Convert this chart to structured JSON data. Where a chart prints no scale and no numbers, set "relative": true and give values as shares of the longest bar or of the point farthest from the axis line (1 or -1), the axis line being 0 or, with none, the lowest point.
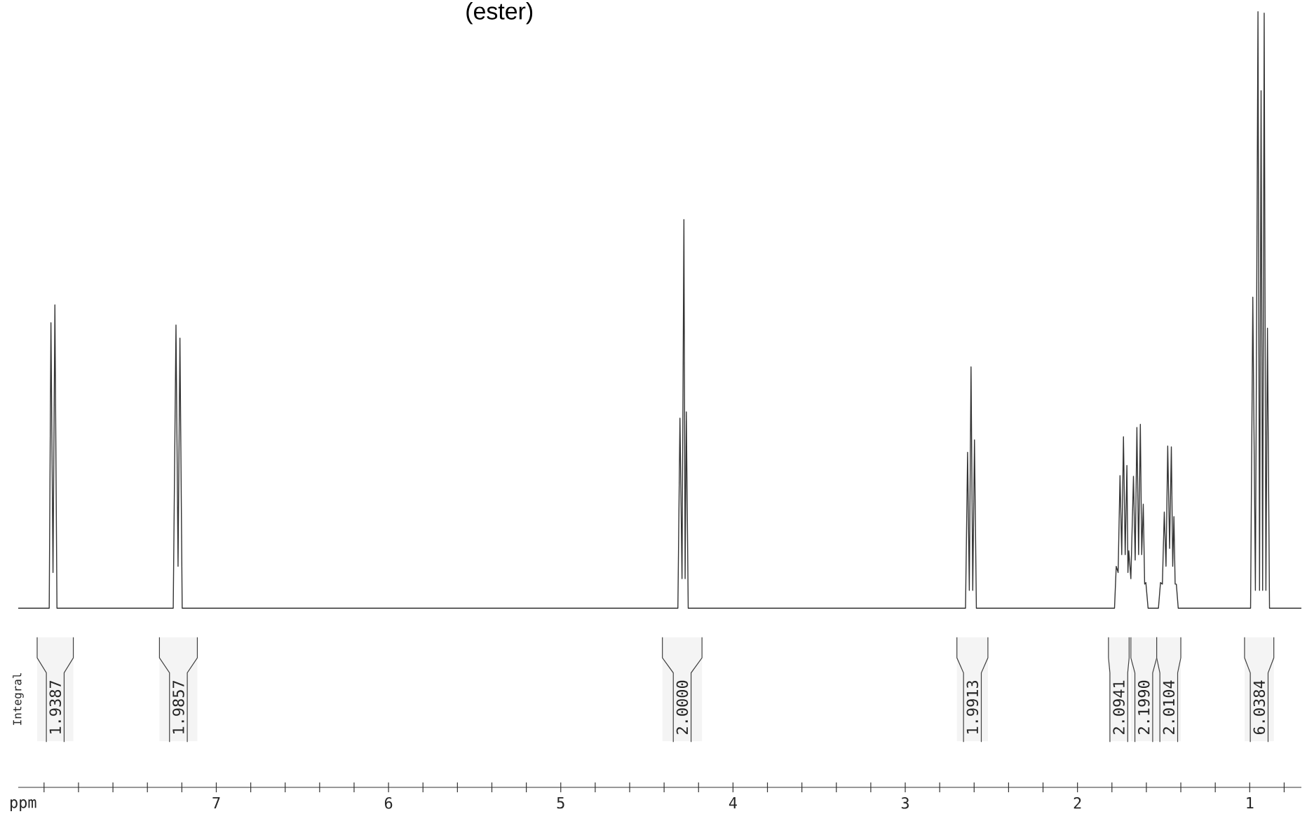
{
  "chart_data": {
    "type": "line",
    "relative": true,
    "title": "(ester)",
    "xlabel": "ppm",
    "color": "#333333",
    "xlim": [
      8.15,
      0.7
    ],
    "xticks": [
      {
        "value": 8,
        "label": null
      },
      7,
      6,
      5,
      4,
      3,
      2,
      1,
      {
        "value": 7.8,
        "label": null
      },
      {
        "value": 7.6,
        "label": null
      },
      {
        "value": 7.4,
        "label": null
      },
      {
        "value": 7.2,
        "label": null
      },
      {
        "value": 6.8,
        "label": null
      },
      {
        "value": 6.6,
        "label": null
      },
      {
        "value": 6.4,
        "label": null
      },
      {
        "value": 6.2,
        "label": null
      },
      {
        "value": 5.8,
        "label": null
      },
      {
        "value": 5.6,
        "label": null
      },
      {
        "value": 5.4,
        "label": null
      },
      {
        "value": 5.2,
        "label": null
      },
      {
        "value": 4.8,
        "label": null
      },
      {
        "value": 4.6,
        "label": null
      },
      {
        "value": 4.4,
        "label": null
      },
      {
        "value": 4.2,
        "label": null
      },
      {
        "value": 3.8,
        "label": null
      },
      {
        "value": 3.6,
        "label": null
      },
      {
        "value": 3.4,
        "label": null
      },
      {
        "value": 3.2,
        "label": null
      },
      {
        "value": 2.8,
        "label": null
      },
      {
        "value": 2.6,
        "label": null
      },
      {
        "value": 2.4,
        "label": null
      },
      {
        "value": 2.2,
        "label": null
      },
      {
        "value": 1.8,
        "label": null
      },
      {
        "value": 1.6,
        "label": null
      },
      {
        "value": 1.4,
        "label": null
      },
      {
        "value": 1.2,
        "label": null
      },
      {
        "value": 0.8,
        "label": null
      }
    ],
    "x": [
      8.15,
      7.97,
      7.96,
      7.948,
      7.937,
      7.925,
      7.25,
      7.234,
      7.222,
      7.211,
      7.198,
      4.32,
      4.308,
      4.296,
      4.285,
      4.278,
      4.271,
      4.26,
      2.65,
      2.638,
      2.628,
      2.618,
      2.608,
      2.598,
      2.587,
      1.785,
      1.775,
      1.764,
      1.753,
      1.743,
      1.733,
      1.723,
      1.713,
      1.707,
      1.702,
      1.69,
      1.675,
      1.665,
      1.655,
      1.645,
      1.635,
      1.627,
      1.618,
      1.61,
      1.603,
      1.59,
      1.53,
      1.518,
      1.507,
      1.496,
      1.486,
      1.476,
      1.465,
      1.455,
      1.447,
      1.44,
      1.433,
      1.426,
      1.415,
      0.995,
      0.982,
      0.967,
      0.952,
      0.943,
      0.934,
      0.925,
      0.916,
      0.906,
      0.897,
      0.885,
      0.7
    ],
    "values": [
      0.231,
      0.231,
      0.599,
      0.277,
      0.622,
      0.231,
      0.231,
      0.596,
      0.285,
      0.579,
      0.231,
      0.231,
      0.476,
      0.269,
      0.732,
      0.269,
      0.484,
      0.231,
      0.231,
      0.432,
      0.254,
      0.542,
      0.254,
      0.448,
      0.231,
      0.231,
      0.285,
      0.277,
      0.402,
      0.3,
      0.452,
      0.3,
      0.415,
      0.277,
      0.305,
      0.269,
      0.401,
      0.293,
      0.464,
      0.3,
      0.468,
      0.3,
      0.365,
      0.262,
      0.264,
      0.231,
      0.231,
      0.264,
      0.262,
      0.355,
      0.285,
      0.44,
      0.308,
      0.439,
      0.285,
      0.349,
      0.262,
      0.262,
      0.231,
      0.231,
      0.632,
      0.254,
      1.0,
      0.254,
      0.898,
      0.254,
      0.998,
      0.254,
      0.592,
      0.231,
      0.231
    ],
    "annotations": [
      "Integral"
    ],
    "bands": [
      {
        "axis": "x",
        "from": 8.04,
        "to": 7.83,
        "label": "1.9387",
        "color": "#f4f4f4"
      },
      {
        "axis": "x",
        "from": 7.33,
        "to": 7.11,
        "label": "1.9857",
        "color": "#f4f4f4"
      },
      {
        "axis": "x",
        "from": 4.41,
        "to": 4.18,
        "label": "2.0000",
        "color": "#f4f4f4"
      },
      {
        "axis": "x",
        "from": 2.7,
        "to": 2.52,
        "label": "1.9913",
        "color": "#f4f4f4"
      },
      {
        "axis": "x",
        "from": 1.82,
        "to": 1.7,
        "label": "2.0941",
        "color": "#f4f4f4"
      },
      {
        "axis": "x",
        "from": 1.69,
        "to": 1.54,
        "label": "2.1990",
        "color": "#f4f4f4"
      },
      {
        "axis": "x",
        "from": 1.54,
        "to": 1.4,
        "label": "2.0104",
        "color": "#f4f4f4"
      },
      {
        "axis": "x",
        "from": 1.03,
        "to": 0.86,
        "label": "6.0384",
        "color": "#f4f4f4"
      }
    ]
  }
}
